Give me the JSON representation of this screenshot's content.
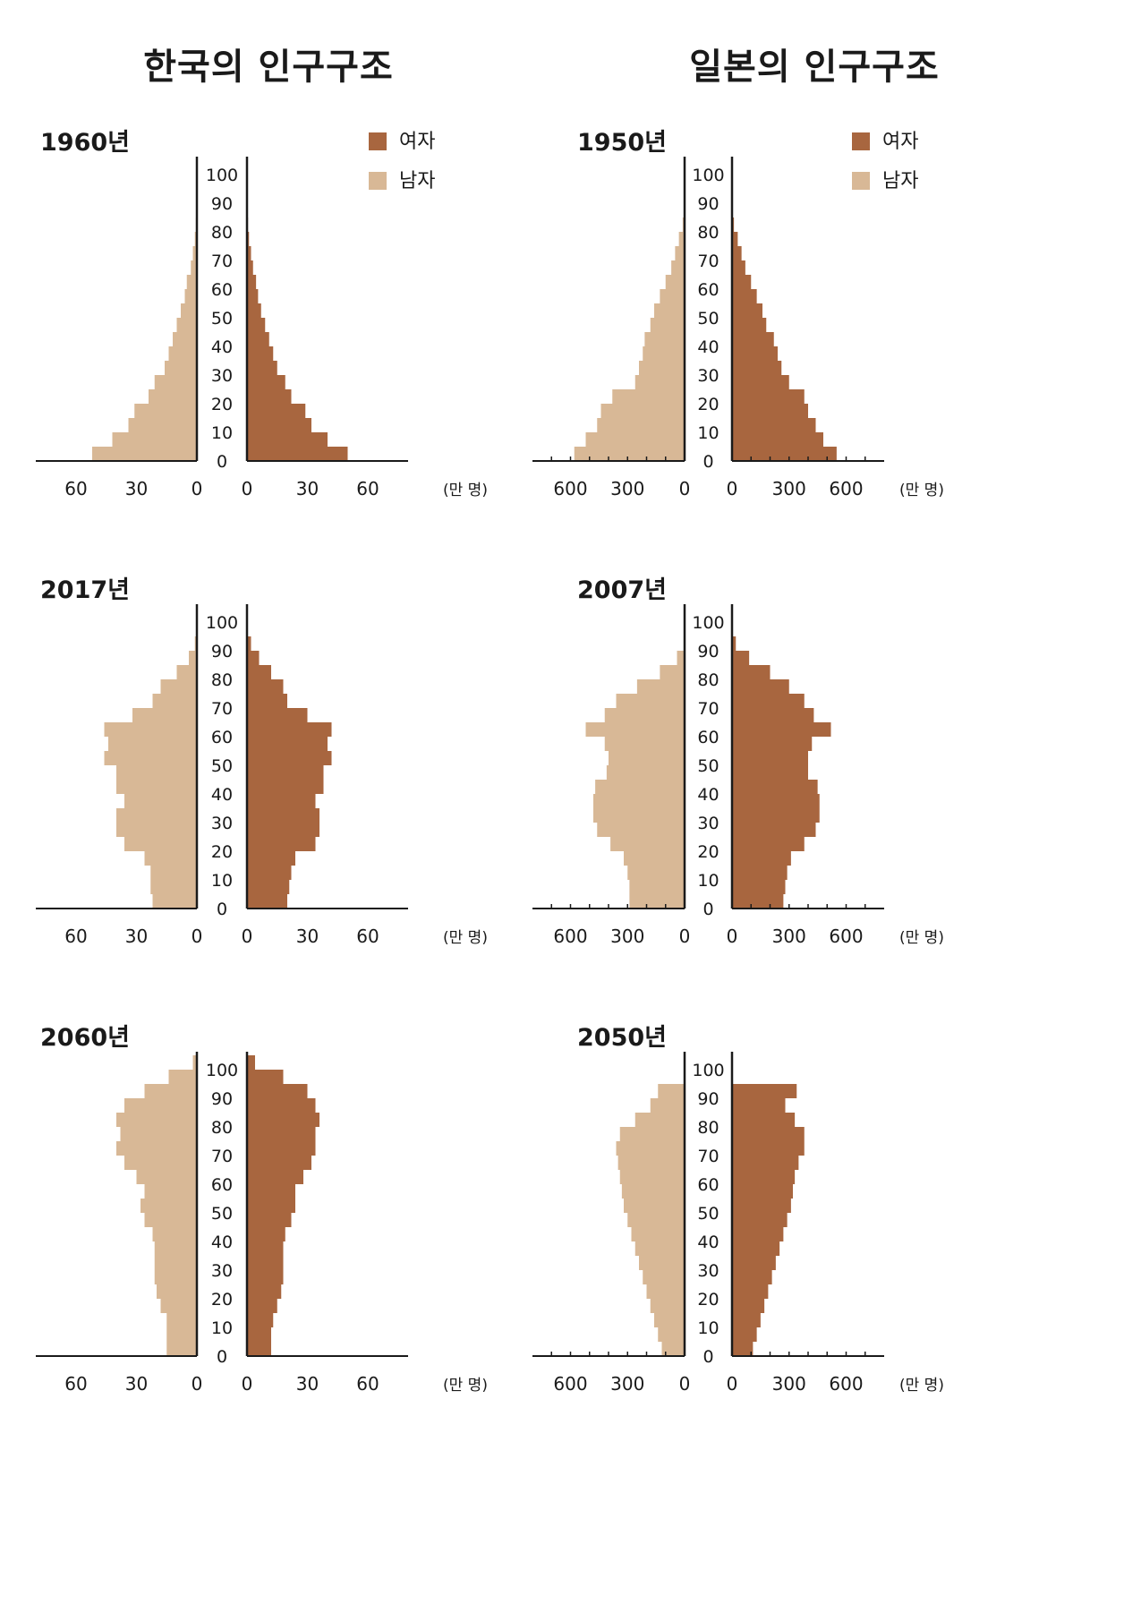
{
  "titles": {
    "korea": "한국의 인구구조",
    "japan": "일본의 인구구조"
  },
  "legend": {
    "female": "여자",
    "male": "남자"
  },
  "colors": {
    "female": "#a8663f",
    "male": "#d8b896",
    "axis": "#1a1a1a"
  },
  "chart_data": [
    {
      "type": "bar",
      "id": "kr1960",
      "country": "korea",
      "year_label": "1960년",
      "unit": "(만 명)",
      "show_legend": true,
      "age_ticks": [
        0,
        10,
        20,
        30,
        40,
        50,
        60,
        70,
        80,
        90,
        100
      ],
      "x_ticks": [
        60,
        30,
        0
      ],
      "xlim": 80,
      "ages": [
        0,
        5,
        10,
        15,
        20,
        25,
        30,
        35,
        40,
        45,
        50,
        55,
        60,
        65,
        70,
        75,
        80
      ],
      "male": [
        52,
        42,
        34,
        31,
        24,
        21,
        16,
        14,
        12,
        10,
        8,
        6,
        5,
        3,
        2,
        1,
        0.5
      ],
      "female": [
        50,
        40,
        32,
        29,
        22,
        19,
        15,
        13,
        11,
        9,
        7,
        5.5,
        4.5,
        3,
        2,
        1,
        0.5
      ]
    },
    {
      "type": "bar",
      "id": "kr2017",
      "country": "korea",
      "year_label": "2017년",
      "unit": "(만 명)",
      "show_legend": false,
      "age_ticks": [
        0,
        10,
        20,
        30,
        40,
        50,
        60,
        70,
        80,
        90,
        100
      ],
      "x_ticks": [
        60,
        30,
        0
      ],
      "xlim": 80,
      "ages": [
        0,
        5,
        10,
        15,
        20,
        25,
        30,
        35,
        40,
        45,
        50,
        55,
        60,
        65,
        70,
        75,
        80,
        85,
        90
      ],
      "male": [
        22,
        23,
        23,
        26,
        36,
        40,
        40,
        36,
        40,
        40,
        46,
        44,
        46,
        32,
        22,
        18,
        10,
        4,
        1
      ],
      "female": [
        20,
        21,
        22,
        24,
        34,
        36,
        36,
        34,
        38,
        38,
        42,
        40,
        42,
        30,
        20,
        18,
        12,
        6,
        2
      ]
    },
    {
      "type": "bar",
      "id": "kr2060",
      "country": "korea",
      "year_label": "2060년",
      "unit": "(만 명)",
      "show_legend": false,
      "age_ticks": [
        0,
        10,
        20,
        30,
        40,
        50,
        60,
        70,
        80,
        90,
        100
      ],
      "x_ticks": [
        60,
        30,
        0
      ],
      "xlim": 80,
      "ages": [
        0,
        5,
        10,
        15,
        20,
        25,
        30,
        35,
        40,
        45,
        50,
        55,
        60,
        65,
        70,
        75,
        80,
        85,
        90,
        95,
        100
      ],
      "male": [
        15,
        15,
        15,
        18,
        20,
        21,
        21,
        21,
        22,
        26,
        28,
        26,
        30,
        36,
        40,
        38,
        40,
        36,
        26,
        14,
        2
      ],
      "female": [
        12,
        12,
        13,
        15,
        17,
        18,
        18,
        18,
        19,
        22,
        24,
        24,
        28,
        32,
        34,
        34,
        36,
        34,
        30,
        18,
        4
      ]
    },
    {
      "type": "bar",
      "id": "jp1950",
      "country": "japan",
      "year_label": "1950년",
      "unit": "(만 명)",
      "show_legend": true,
      "age_ticks": [
        0,
        10,
        20,
        30,
        40,
        50,
        60,
        70,
        80,
        90,
        100
      ],
      "x_ticks": [
        600,
        300,
        0
      ],
      "xlim": 800,
      "ages": [
        0,
        5,
        10,
        15,
        20,
        25,
        30,
        35,
        40,
        45,
        50,
        55,
        60,
        65,
        70,
        75,
        80,
        85
      ],
      "male": [
        580,
        520,
        460,
        440,
        380,
        260,
        240,
        220,
        210,
        180,
        160,
        130,
        100,
        70,
        50,
        30,
        10,
        3
      ],
      "female": [
        550,
        480,
        440,
        400,
        380,
        300,
        260,
        240,
        220,
        180,
        160,
        130,
        100,
        70,
        50,
        30,
        10,
        3
      ]
    },
    {
      "type": "bar",
      "id": "jp2007",
      "country": "japan",
      "year_label": "2007년",
      "unit": "(만 명)",
      "show_legend": false,
      "age_ticks": [
        0,
        10,
        20,
        30,
        40,
        50,
        60,
        70,
        80,
        90,
        100
      ],
      "x_ticks": [
        600,
        300,
        0
      ],
      "xlim": 800,
      "ages": [
        0,
        5,
        10,
        15,
        20,
        25,
        30,
        35,
        40,
        45,
        50,
        55,
        60,
        65,
        70,
        75,
        80,
        85,
        90
      ],
      "male": [
        290,
        290,
        300,
        320,
        390,
        460,
        480,
        480,
        470,
        410,
        400,
        420,
        520,
        420,
        360,
        250,
        130,
        40,
        5
      ],
      "female": [
        270,
        280,
        290,
        310,
        380,
        440,
        460,
        460,
        450,
        400,
        400,
        420,
        520,
        430,
        380,
        300,
        200,
        90,
        20
      ]
    },
    {
      "type": "bar",
      "id": "jp2050",
      "country": "japan",
      "year_label": "2050년",
      "unit": "(만 명)",
      "show_legend": false,
      "age_ticks": [
        0,
        10,
        20,
        30,
        40,
        50,
        60,
        70,
        80,
        90,
        100
      ],
      "x_ticks": [
        600,
        300,
        0
      ],
      "xlim": 800,
      "ages": [
        0,
        5,
        10,
        15,
        20,
        25,
        30,
        35,
        40,
        45,
        50,
        55,
        60,
        65,
        70,
        75,
        80,
        85,
        90
      ],
      "male": [
        120,
        140,
        160,
        180,
        200,
        220,
        240,
        260,
        280,
        300,
        320,
        330,
        340,
        350,
        360,
        340,
        260,
        180,
        140
      ],
      "female": [
        110,
        130,
        150,
        170,
        190,
        210,
        230,
        250,
        270,
        290,
        310,
        320,
        330,
        350,
        380,
        380,
        330,
        280,
        340
      ]
    }
  ]
}
